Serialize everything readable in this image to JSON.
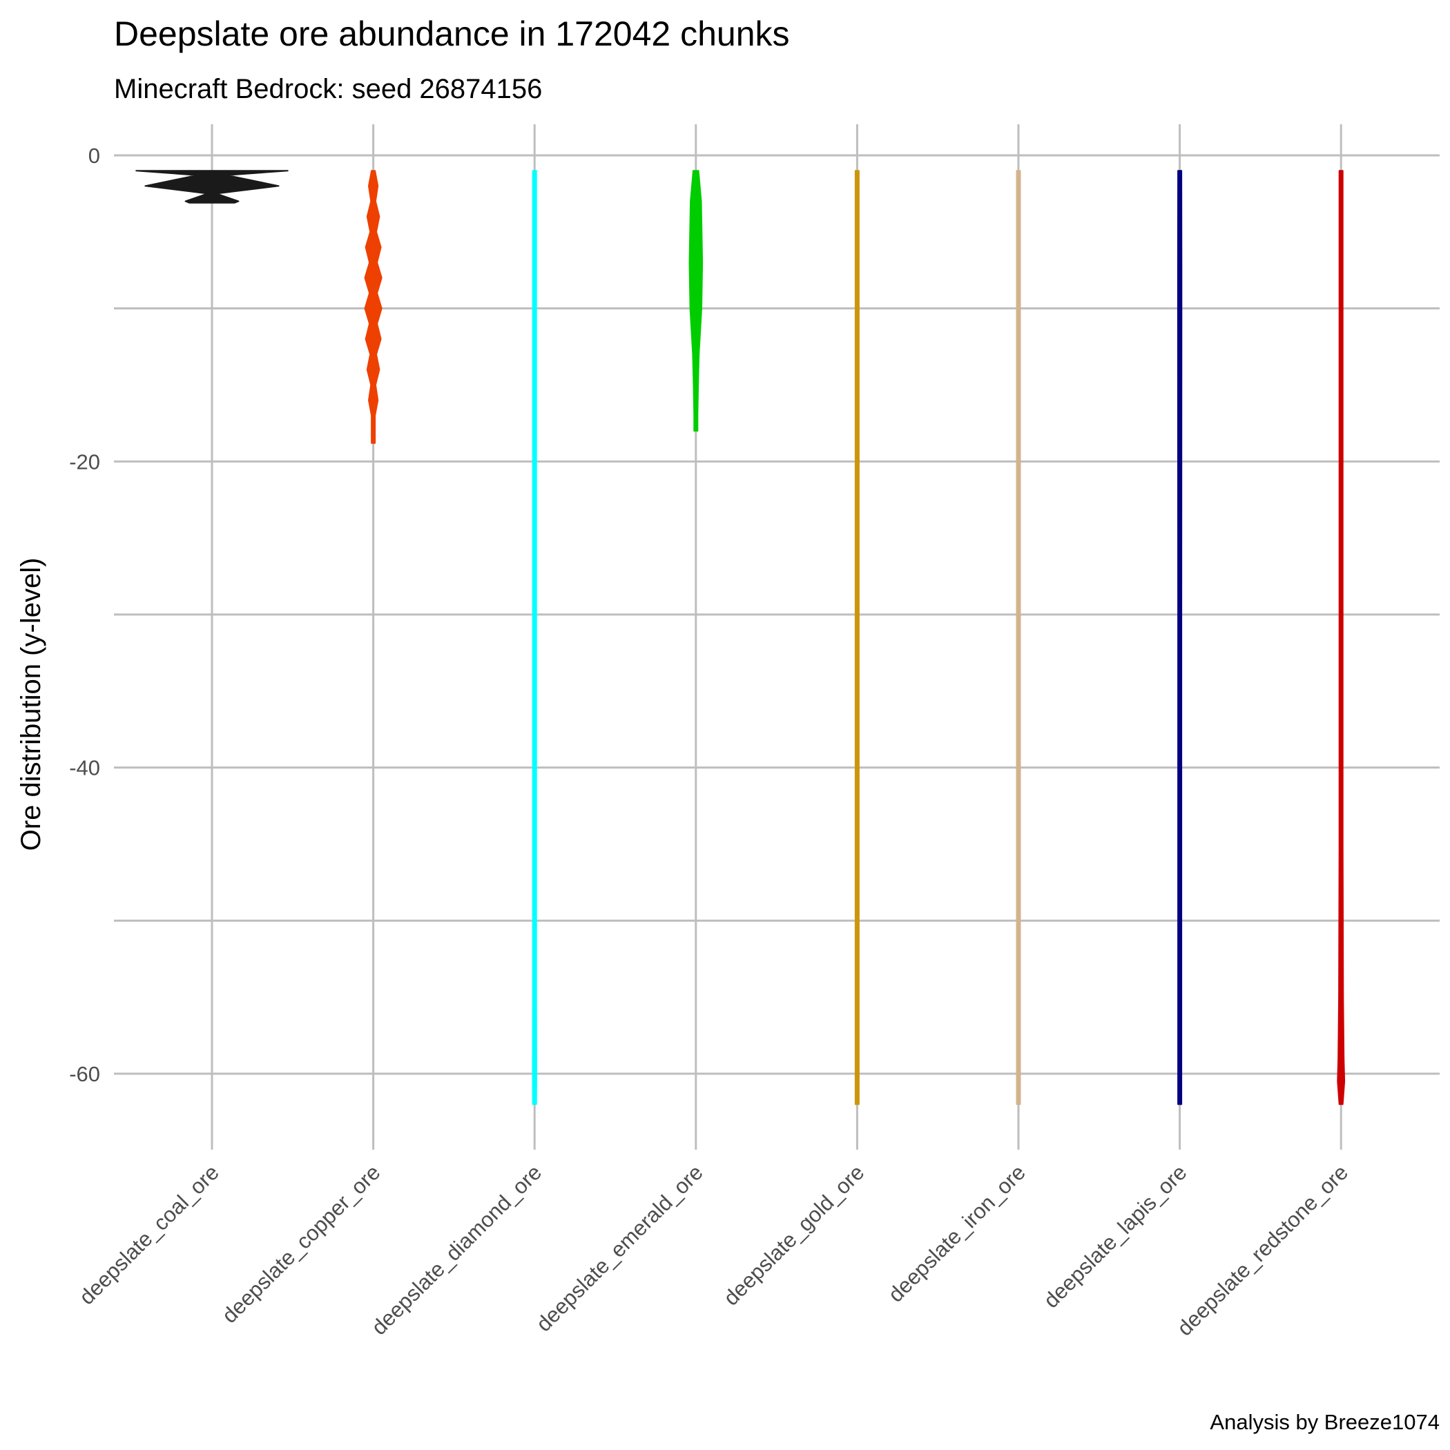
{
  "chart_data": {
    "type": "violin",
    "title": "Deepslate ore abundance in 172042 chunks",
    "subtitle": "Minecraft Bedrock: seed 26874156",
    "ylabel": "Ore distribution (y-level)",
    "xlabel": "",
    "caption": "Analysis by Breeze1074",
    "ylim": [
      -65,
      2
    ],
    "yticks": [
      0,
      -20,
      -40,
      -60
    ],
    "grid": true,
    "legend": "none",
    "categories": [
      "deepslate_coal_ore",
      "deepslate_copper_ore",
      "deepslate_diamond_ore",
      "deepslate_emerald_ore",
      "deepslate_gold_ore",
      "deepslate_iron_ore",
      "deepslate_lapis_ore",
      "deepslate_redstone_ore"
    ],
    "series": [
      {
        "category": "deepslate_coal_ore",
        "color": "#1a1a1a",
        "profile": [
          [
            -1,
            1.0
          ],
          [
            -1.3,
            0.2
          ],
          [
            -2,
            0.88
          ],
          [
            -2.5,
            0.06
          ],
          [
            -3,
            0.35
          ],
          [
            -3.1,
            0.3
          ]
        ]
      },
      {
        "category": "deepslate_copper_ore",
        "color": "#ee4000",
        "profile": [
          [
            -1,
            0.02
          ],
          [
            -2,
            0.06
          ],
          [
            -3,
            0.03
          ],
          [
            -4,
            0.08
          ],
          [
            -5,
            0.04
          ],
          [
            -6,
            0.1
          ],
          [
            -7,
            0.05
          ],
          [
            -8,
            0.11
          ],
          [
            -9,
            0.05
          ],
          [
            -10,
            0.11
          ],
          [
            -11,
            0.05
          ],
          [
            -12,
            0.1
          ],
          [
            -13,
            0.04
          ],
          [
            -14,
            0.08
          ],
          [
            -15,
            0.03
          ],
          [
            -16,
            0.06
          ],
          [
            -17,
            0.02
          ],
          [
            -18,
            0.02
          ],
          [
            -18.8,
            0.01
          ]
        ]
      },
      {
        "category": "deepslate_diamond_ore",
        "color": "#00ffff",
        "profile": [
          [
            -1,
            0.01
          ],
          [
            -20,
            0.012
          ],
          [
            -40,
            0.015
          ],
          [
            -55,
            0.02
          ],
          [
            -60,
            0.025
          ],
          [
            -62,
            0.015
          ]
        ]
      },
      {
        "category": "deepslate_emerald_ore",
        "color": "#00cd00",
        "profile": [
          [
            -1,
            0.035
          ],
          [
            -3,
            0.07
          ],
          [
            -7,
            0.085
          ],
          [
            -10,
            0.075
          ],
          [
            -13,
            0.04
          ],
          [
            -15,
            0.03
          ],
          [
            -17,
            0.02
          ],
          [
            -18,
            0.015
          ]
        ]
      },
      {
        "category": "deepslate_gold_ore",
        "color": "#cd950c",
        "profile": [
          [
            -1,
            0.01
          ],
          [
            -20,
            0.015
          ],
          [
            -40,
            0.015
          ],
          [
            -55,
            0.012
          ],
          [
            -60,
            0.01
          ],
          [
            -62,
            0.008
          ]
        ]
      },
      {
        "category": "deepslate_iron_ore",
        "color": "#d2b48c",
        "profile": [
          [
            -1,
            0.004
          ],
          [
            -5,
            0.012
          ],
          [
            -15,
            0.01
          ],
          [
            -30,
            0.007
          ],
          [
            -50,
            0.006
          ],
          [
            -62,
            0.004
          ]
        ]
      },
      {
        "category": "deepslate_lapis_ore",
        "color": "#000080",
        "profile": [
          [
            -1,
            0.015
          ],
          [
            -8,
            0.025
          ],
          [
            -30,
            0.022
          ],
          [
            -50,
            0.02
          ],
          [
            -62,
            0.015
          ]
        ]
      },
      {
        "category": "deepslate_redstone_ore",
        "color": "#cd0000",
        "profile": [
          [
            -1,
            0.012
          ],
          [
            -30,
            0.014
          ],
          [
            -45,
            0.018
          ],
          [
            -55,
            0.028
          ],
          [
            -59,
            0.036
          ],
          [
            -60.5,
            0.045
          ],
          [
            -62,
            0.02
          ]
        ]
      }
    ]
  }
}
